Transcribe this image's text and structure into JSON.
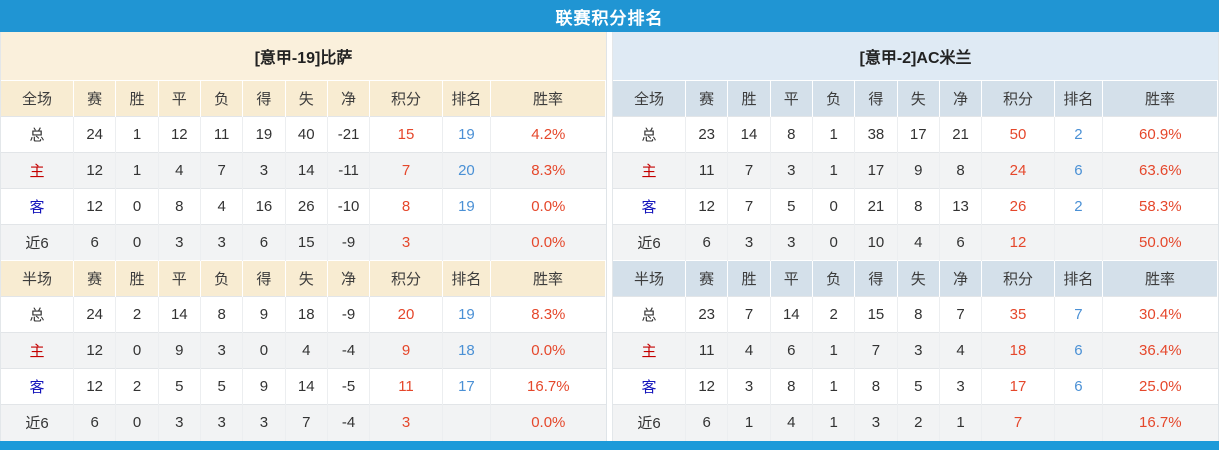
{
  "title": "联赛积分排名",
  "section_labels": {
    "full": "全场",
    "half": "半场"
  },
  "columns": [
    "赛",
    "胜",
    "平",
    "负",
    "得",
    "失",
    "净",
    "积分",
    "排名",
    "胜率"
  ],
  "row_labels": [
    "总",
    "主",
    "客",
    "近6"
  ],
  "teams": [
    {
      "name": "[意甲-19]比萨",
      "full": [
        [
          "24",
          "1",
          "12",
          "11",
          "19",
          "40",
          "-21",
          "15",
          "19",
          "4.2%"
        ],
        [
          "12",
          "1",
          "4",
          "7",
          "3",
          "14",
          "-11",
          "7",
          "20",
          "8.3%"
        ],
        [
          "12",
          "0",
          "8",
          "4",
          "16",
          "26",
          "-10",
          "8",
          "19",
          "0.0%"
        ],
        [
          "6",
          "0",
          "3",
          "3",
          "6",
          "15",
          "-9",
          "3",
          "",
          "0.0%"
        ]
      ],
      "half": [
        [
          "24",
          "2",
          "14",
          "8",
          "9",
          "18",
          "-9",
          "20",
          "19",
          "8.3%"
        ],
        [
          "12",
          "0",
          "9",
          "3",
          "0",
          "4",
          "-4",
          "9",
          "18",
          "0.0%"
        ],
        [
          "12",
          "2",
          "5",
          "5",
          "9",
          "14",
          "-5",
          "11",
          "17",
          "16.7%"
        ],
        [
          "6",
          "0",
          "3",
          "3",
          "3",
          "7",
          "-4",
          "3",
          "",
          "0.0%"
        ]
      ]
    },
    {
      "name": "[意甲-2]AC米兰",
      "full": [
        [
          "23",
          "14",
          "8",
          "1",
          "38",
          "17",
          "21",
          "50",
          "2",
          "60.9%"
        ],
        [
          "11",
          "7",
          "3",
          "1",
          "17",
          "9",
          "8",
          "24",
          "6",
          "63.6%"
        ],
        [
          "12",
          "7",
          "5",
          "0",
          "21",
          "8",
          "13",
          "26",
          "2",
          "58.3%"
        ],
        [
          "6",
          "3",
          "3",
          "0",
          "10",
          "4",
          "6",
          "12",
          "",
          "50.0%"
        ]
      ],
      "half": [
        [
          "23",
          "7",
          "14",
          "2",
          "15",
          "8",
          "7",
          "35",
          "7",
          "30.4%"
        ],
        [
          "11",
          "4",
          "6",
          "1",
          "7",
          "3",
          "4",
          "18",
          "6",
          "36.4%"
        ],
        [
          "12",
          "3",
          "8",
          "1",
          "8",
          "5",
          "3",
          "17",
          "6",
          "25.0%"
        ],
        [
          "6",
          "1",
          "4",
          "1",
          "3",
          "2",
          "1",
          "7",
          "",
          "16.7%"
        ]
      ]
    }
  ],
  "colors": {
    "title_bar": "#2095d3",
    "bottom_bar": "#1c9ad9",
    "left_header_bg": "#faf0dc",
    "left_col_header_bg": "#f8ecd2",
    "right_header_bg": "#dfeaf4",
    "right_col_header_bg": "#d4e0ea",
    "alt_row_bg": "#f2f3f4",
    "points_and_pct": "#e5472b",
    "rank": "#4a90d5",
    "home_label": "#c40000",
    "away_label": "#1414bb",
    "body_text": "#333333"
  }
}
